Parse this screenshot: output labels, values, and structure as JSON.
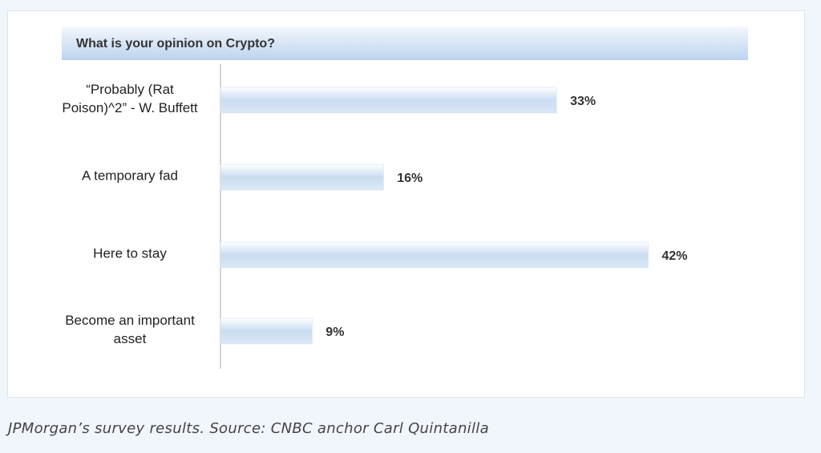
{
  "chart_data": {
    "type": "bar",
    "orientation": "horizontal",
    "title": "What is your opinion on Crypto?",
    "categories": [
      "“Probably (Rat Poison)^2” - W. Buffett",
      "A temporary fad",
      "Here to stay",
      "Become an important asset"
    ],
    "values": [
      33,
      16,
      42,
      9
    ],
    "value_labels": [
      "33%",
      "16%",
      "42%",
      "9%"
    ],
    "color": "#c9dcf1"
  },
  "caption": "JPMorgan’s survey results. Source: CNBC anchor Carl Quintanilla"
}
